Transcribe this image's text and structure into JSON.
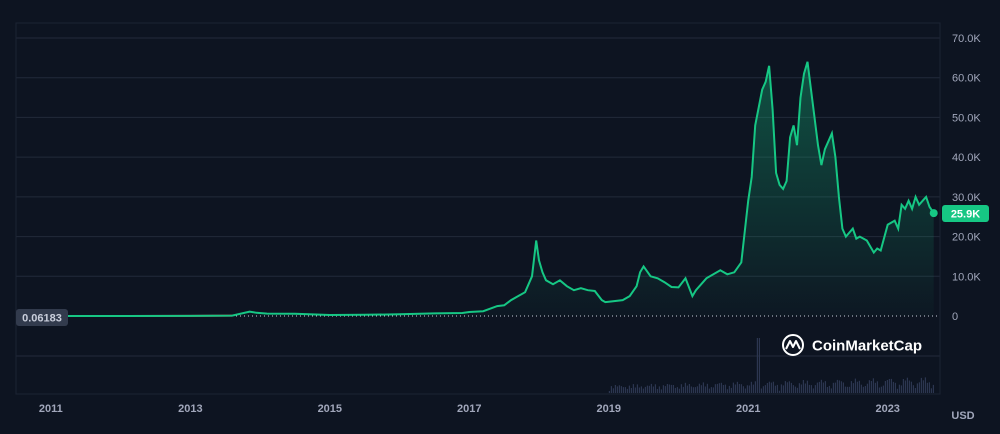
{
  "chart_data": {
    "type": "area",
    "currency_label": "USD",
    "y_ticks": [
      "70.0K",
      "60.0K",
      "50.0K",
      "40.0K",
      "30.0K",
      "20.0K",
      "10.0K",
      "0"
    ],
    "y_tick_values": [
      70000,
      60000,
      50000,
      40000,
      30000,
      20000,
      10000,
      0
    ],
    "ylim": [
      0,
      70000
    ],
    "x_ticks": [
      "2011",
      "2013",
      "2015",
      "2017",
      "2019",
      "2021",
      "2023"
    ],
    "x_tick_values": [
      2011,
      2013,
      2015,
      2017,
      2019,
      2021,
      2023
    ],
    "xlim": [
      2010.5,
      2023.75
    ],
    "start_label": "0.06183",
    "current_label": "25.9K",
    "current_value": 25900,
    "watermark": "CoinMarketCap",
    "colors": {
      "up": "#16c784",
      "down": "#ea3943",
      "background": "#0d1421",
      "volume": "#2c3650"
    },
    "series": [
      {
        "x": [
          2010.55,
          2012.0,
          2013.0,
          2013.6,
          2013.85,
          2013.95,
          2014.1,
          2014.5,
          2015.0,
          2015.5,
          2016.0,
          2016.5,
          2016.9,
          2017.0,
          2017.2,
          2017.4,
          2017.5,
          2017.6,
          2017.7,
          2017.8,
          2017.9,
          2017.96,
          2018.0,
          2018.05,
          2018.1,
          2018.2,
          2018.3,
          2018.4,
          2018.5,
          2018.6,
          2018.7,
          2018.8,
          2018.9,
          2018.95,
          2019.0,
          2019.2,
          2019.3,
          2019.4,
          2019.45,
          2019.5,
          2019.6,
          2019.7,
          2019.8,
          2019.9,
          2020.0,
          2020.1,
          2020.2,
          2020.25,
          2020.4,
          2020.6,
          2020.7,
          2020.8,
          2020.9,
          2021.0,
          2021.05,
          2021.1,
          2021.2,
          2021.25,
          2021.3,
          2021.35,
          2021.4,
          2021.45,
          2021.5,
          2021.55,
          2021.6,
          2021.65,
          2021.7,
          2021.75,
          2021.8,
          2021.85,
          2021.9,
          2021.95,
          2022.0,
          2022.05,
          2022.1,
          2022.15,
          2022.2,
          2022.25,
          2022.3,
          2022.35,
          2022.4,
          2022.45,
          2022.5,
          2022.55,
          2022.6,
          2022.7,
          2022.8,
          2022.85,
          2022.9,
          2023.0,
          2023.1,
          2023.15,
          2023.2,
          2023.25,
          2023.3,
          2023.35,
          2023.4,
          2023.45,
          2023.5,
          2023.55,
          2023.6,
          2023.66
        ],
        "y": [
          0.06,
          5,
          13,
          100,
          1100,
          800,
          600,
          550,
          250,
          300,
          430,
          650,
          750,
          1000,
          1200,
          2500,
          2700,
          4000,
          5000,
          6000,
          10000,
          19000,
          14000,
          11000,
          9000,
          8000,
          9000,
          7500,
          6500,
          7000,
          6500,
          6300,
          4000,
          3500,
          3600,
          4000,
          5000,
          7500,
          11000,
          12500,
          10000,
          9500,
          8500,
          7300,
          7200,
          9500,
          5000,
          6500,
          9500,
          11500,
          10500,
          11000,
          13500,
          29000,
          35000,
          48000,
          57000,
          59000,
          63000,
          52000,
          36000,
          33000,
          32000,
          34000,
          45000,
          48000,
          43000,
          55000,
          61000,
          64000,
          57000,
          50000,
          43000,
          38000,
          42000,
          44000,
          46000,
          40000,
          30000,
          22000,
          20000,
          21000,
          22000,
          19500,
          20000,
          19000,
          16000,
          17000,
          16500,
          23000,
          24000,
          22000,
          28000,
          27000,
          29000,
          27000,
          30000,
          28000,
          29000,
          30000,
          27500,
          25900
        ]
      }
    ]
  }
}
